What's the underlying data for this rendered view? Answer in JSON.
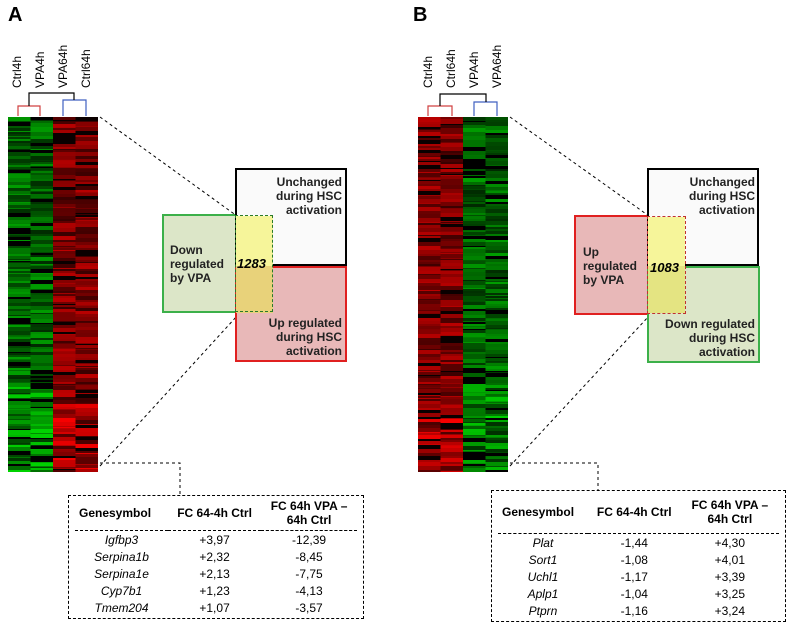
{
  "panels": [
    {
      "label": "A",
      "columns": [
        "Ctrl4h",
        "VPA4h",
        "VPA64h",
        "Ctrl64h"
      ],
      "venn": {
        "left": "Down regulated by VPA",
        "top": "Unchanged during HSC activation",
        "bottom": "Up regulated during HSC activation",
        "count": "1283",
        "left_color": "#6ebf5a",
        "top_color": "#000000",
        "bottom_color": "#e02020"
      },
      "table": {
        "headers": [
          "Genesymbol",
          "FC 64-4h Ctrl",
          "FC 64h VPA – 64h Ctrl"
        ],
        "rows": [
          [
            "Igfbp3",
            "+3,97",
            "-12,39"
          ],
          [
            "Serpina1b",
            "+2,32",
            "-8,45"
          ],
          [
            "Serpina1e",
            "+2,13",
            "-7,75"
          ],
          [
            "Cyp7b1",
            "+1,23",
            "-4,13"
          ],
          [
            "Tmem204",
            "+1,07",
            "-3,57"
          ]
        ]
      }
    },
    {
      "label": "B",
      "columns": [
        "Ctrl4h",
        "Ctrl64h",
        "VPA4h",
        "VPA64h"
      ],
      "venn": {
        "left": "Up regulated by VPA",
        "top": "Unchanged during HSC activation",
        "bottom": "Down regulated during HSC activation",
        "count": "1083",
        "left_color": "#e02020",
        "top_color": "#000000",
        "bottom_color": "#3cb04a"
      },
      "table": {
        "headers": [
          "Genesymbol",
          "FC 64-4h Ctrl",
          "FC 64h VPA – 64h Ctrl"
        ],
        "rows": [
          [
            "Plat",
            "-1,44",
            "+4,30"
          ],
          [
            "Sort1",
            "-1,08",
            "+4,01"
          ],
          [
            "Uchl1",
            "-1,17",
            "+3,39"
          ],
          [
            "Aplp1",
            "-1,04",
            "+3,25"
          ],
          [
            "Ptprn",
            "-1,16",
            "+3,24"
          ]
        ]
      }
    }
  ]
}
